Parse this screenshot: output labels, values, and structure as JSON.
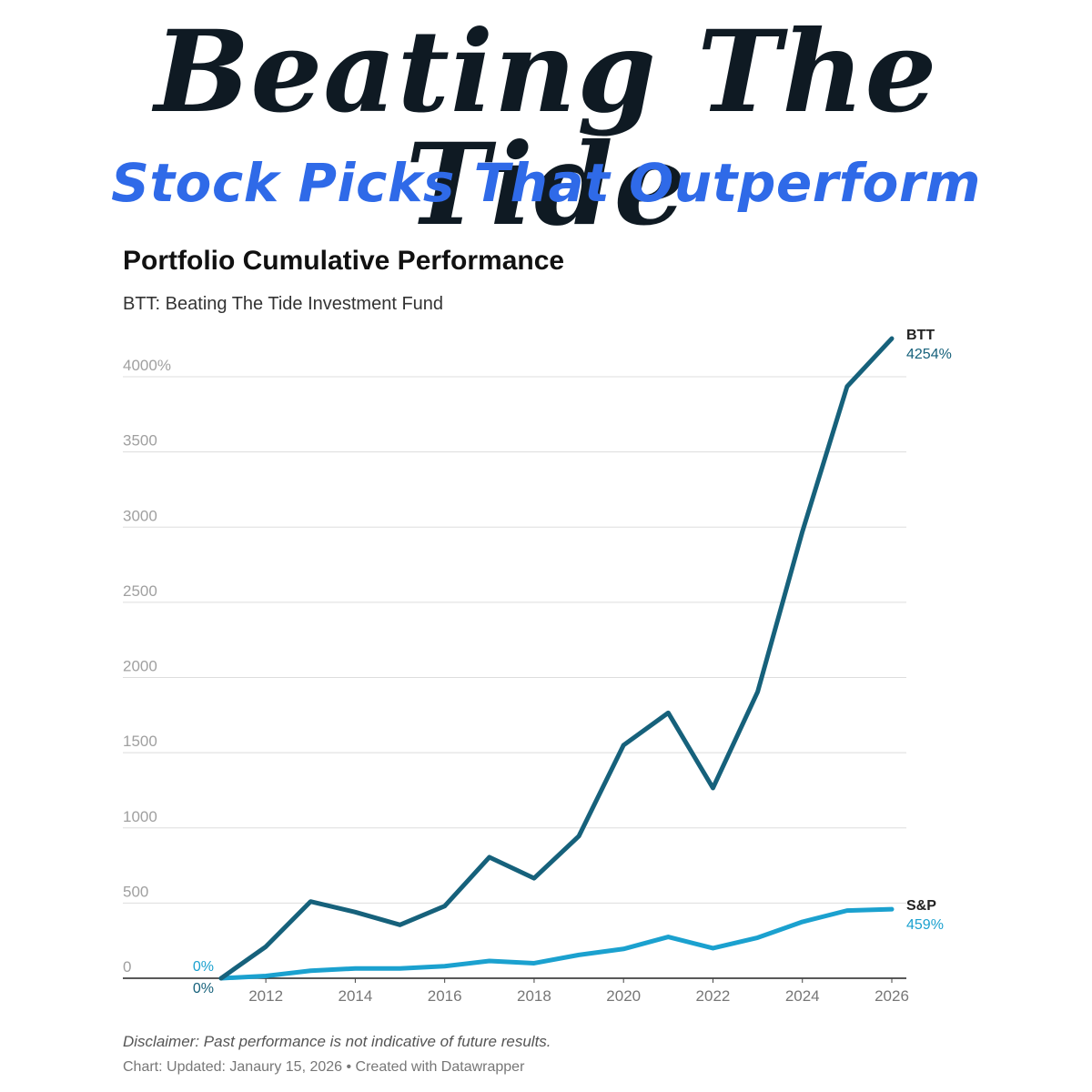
{
  "banner": {
    "title": "Beating The Tide",
    "subtitle": "Stock Picks That Outperform"
  },
  "chart": {
    "title": "Portfolio Cumulative Performance",
    "subtitle": "BTT: Beating The Tide Investment Fund",
    "disclaimer": "Disclaimer: Past performance is not indicative of future results.",
    "credit": "Chart: Updated: Janaury 15, 2026 • Created with Datawrapper"
  },
  "chart_data": {
    "type": "line",
    "title": "Portfolio Cumulative Performance",
    "subtitle": "BTT: Beating The Tide Investment Fund",
    "xlabel": "",
    "ylabel": "",
    "xlim": [
      2011,
      2026
    ],
    "ylim": [
      0,
      4000
    ],
    "x": [
      2011,
      2012,
      2013,
      2014,
      2015,
      2016,
      2017,
      2018,
      2019,
      2020,
      2021,
      2022,
      2023,
      2024,
      2025,
      2026
    ],
    "x_ticks": [
      "2012",
      "2014",
      "2016",
      "2018",
      "2020",
      "2022",
      "2024",
      "2026"
    ],
    "y_ticks": [
      "0",
      "500",
      "1000",
      "1500",
      "2000",
      "2500",
      "3000",
      "3500",
      "4000%"
    ],
    "grid": true,
    "series": [
      {
        "name": "BTT",
        "end_label": "4254%",
        "start_label": "0%",
        "color": "#16617b",
        "values": [
          0,
          210,
          510,
          440,
          355,
          480,
          805,
          665,
          945,
          1550,
          1765,
          1265,
          1905,
          2970,
          3935,
          4254
        ]
      },
      {
        "name": "S&P",
        "end_label": "459%",
        "start_label": "0%",
        "color": "#1ba1cf",
        "values": [
          0,
          15,
          50,
          65,
          65,
          80,
          115,
          100,
          155,
          195,
          275,
          200,
          270,
          375,
          450,
          459
        ]
      }
    ]
  }
}
